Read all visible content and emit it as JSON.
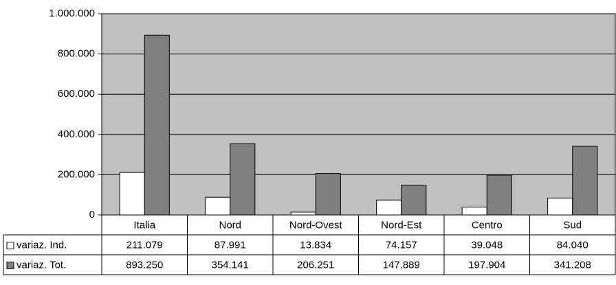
{
  "chart_data": {
    "type": "bar",
    "categories": [
      "Italia",
      "Nord",
      "Nord-Ovest",
      "Nord-Est",
      "Centro",
      "Sud"
    ],
    "series": [
      {
        "name": "variaz. Ind.",
        "color": "#ffffff",
        "values": [
          211079,
          87991,
          13834,
          74157,
          39048,
          84040
        ],
        "value_labels": [
          "211.079",
          "87.991",
          "13.834",
          "74.157",
          "39.048",
          "84.040"
        ]
      },
      {
        "name": "variaz. Tot.",
        "color": "#808080",
        "values": [
          893250,
          354141,
          206251,
          147889,
          197904,
          341208
        ],
        "value_labels": [
          "893.250",
          "354.141",
          "206.251",
          "147.889",
          "197.904",
          "341.208"
        ]
      }
    ],
    "ylim": [
      0,
      1000000
    ],
    "yticks": [
      0,
      {
        "value": 200000,
        "label": "200.000"
      },
      {
        "value": 400000,
        "label": "400.000"
      },
      {
        "value": 600000,
        "label": "600.000"
      },
      {
        "value": 800000,
        "label": "800.000"
      },
      {
        "value": 1000000,
        "label": "1.000.000"
      }
    ],
    "grid": true,
    "plot_background": "#c0c0c0"
  }
}
